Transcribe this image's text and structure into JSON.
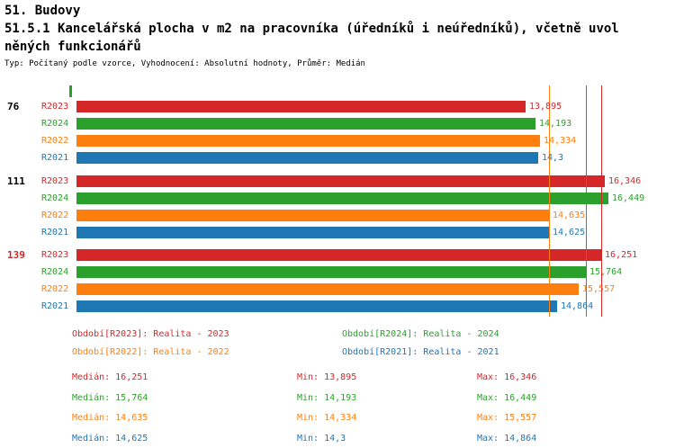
{
  "header": {
    "title": "51. Budovy",
    "description_line1": "51.5.1 Kancelářská plocha v m2 na pracovníka (úředníků i neúředníků), včetně uvol",
    "description_line2": "něných funkcionářů",
    "meta": "Typ: Počítaný podle vzorce, Vyhodnocení: Absolutní hodnoty, Průměr: Medián"
  },
  "chart_data": {
    "type": "bar",
    "orientation": "horizontal",
    "title": "51.5.1 Kancelářská plocha v m2 na pracovníka (úředníků i neúředníků), včetně uvolněných funkcionářů",
    "unit": "m2",
    "xlabel": "",
    "ylabel": "",
    "xlim": [
      0,
      16.9
    ],
    "grid": false,
    "legend_position": "bottom",
    "series_order": [
      "R2023",
      "R2024",
      "R2022",
      "R2021"
    ],
    "series_colors": {
      "R2023": "#d62728",
      "R2024": "#2ca02c",
      "R2022": "#ff7f0e",
      "R2021": "#1f77b4"
    },
    "groups": [
      {
        "label": "76",
        "label_color": "#000000",
        "bars": [
          {
            "series": "R2023",
            "value": 13.895,
            "display": "13,895"
          },
          {
            "series": "R2024",
            "value": 14.193,
            "display": "14,193"
          },
          {
            "series": "R2022",
            "value": 14.334,
            "display": "14,334"
          },
          {
            "series": "R2021",
            "value": 14.3,
            "display": "14,3"
          }
        ]
      },
      {
        "label": "111",
        "label_color": "#000000",
        "bars": [
          {
            "series": "R2023",
            "value": 16.346,
            "display": "16,346"
          },
          {
            "series": "R2024",
            "value": 16.449,
            "display": "16,449"
          },
          {
            "series": "R2022",
            "value": 14.635,
            "display": "14,635"
          },
          {
            "series": "R2021",
            "value": 14.625,
            "display": "14,625"
          }
        ]
      },
      {
        "label": "139",
        "label_color": "#d62728",
        "bars": [
          {
            "series": "R2023",
            "value": 16.251,
            "display": "16,251"
          },
          {
            "series": "R2024",
            "value": 15.764,
            "display": "15,764"
          },
          {
            "series": "R2022",
            "value": 15.557,
            "display": "15,557"
          },
          {
            "series": "R2021",
            "value": 14.864,
            "display": "14,864"
          }
        ]
      }
    ],
    "reference_lines": [
      {
        "series": "R2021",
        "value": 14.625,
        "color": "#1f77b4"
      },
      {
        "series": "R2022",
        "value": 14.635,
        "color": "#ff7f0e"
      },
      {
        "series": "R2024",
        "value": 15.764,
        "color": "#2ca02c"
      },
      {
        "series": "R2023",
        "value": 16.251,
        "color": "#d62728"
      }
    ]
  },
  "legend": {
    "items": [
      {
        "series": "R2023",
        "label": "Období[R2023]: Realita - 2023",
        "color": "#d62728",
        "col": 0,
        "row": 0
      },
      {
        "series": "R2024",
        "label": "Období[R2024]: Realita - 2024",
        "color": "#2ca02c",
        "col": 1,
        "row": 0
      },
      {
        "series": "R2022",
        "label": "Období[R2022]: Realita - 2022",
        "color": "#ff7f0e",
        "col": 0,
        "row": 1
      },
      {
        "series": "R2021",
        "label": "Období[R2021]: Realita - 2021",
        "color": "#1f77b4",
        "col": 1,
        "row": 1
      }
    ]
  },
  "stats": {
    "rows": [
      {
        "series": "R2023",
        "color": "#d62728",
        "median": "Medián: 16,251",
        "min": "Min: 13,895",
        "max": "Max: 16,346"
      },
      {
        "series": "R2024",
        "color": "#2ca02c",
        "median": "Medián: 15,764",
        "min": "Min: 14,193",
        "max": "Max: 16,449"
      },
      {
        "series": "R2022",
        "color": "#ff7f0e",
        "median": "Medián: 14,635",
        "min": "Min: 14,334",
        "max": "Max: 15,557"
      },
      {
        "series": "R2021",
        "color": "#1f77b4",
        "median": "Medián: 14,625",
        "min": "Min: 14,3",
        "max": "Max: 14,864"
      }
    ]
  }
}
